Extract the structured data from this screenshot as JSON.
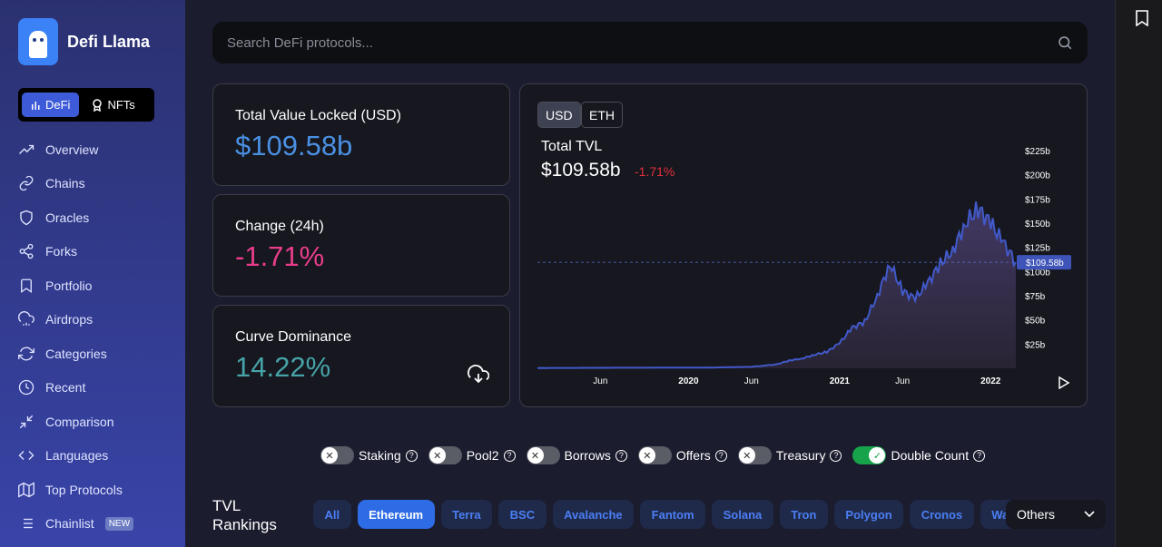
{
  "app": {
    "name": "Defi Llama"
  },
  "mode_switch": [
    {
      "label": "DeFi",
      "active": true
    },
    {
      "label": "NFTs",
      "active": false
    }
  ],
  "nav": [
    {
      "label": "Overview",
      "icon": "trending-up-icon"
    },
    {
      "label": "Chains",
      "icon": "link-icon"
    },
    {
      "label": "Oracles",
      "icon": "shield-icon"
    },
    {
      "label": "Forks",
      "icon": "share-icon"
    },
    {
      "label": "Portfolio",
      "icon": "bookmark-icon"
    },
    {
      "label": "Airdrops",
      "icon": "cloud-rain-icon"
    },
    {
      "label": "Categories",
      "icon": "refresh-icon"
    },
    {
      "label": "Recent",
      "icon": "clock-icon"
    },
    {
      "label": "Comparison",
      "icon": "minimize-icon"
    },
    {
      "label": "Languages",
      "icon": "code-icon"
    },
    {
      "label": "Top Protocols",
      "icon": "map-icon"
    },
    {
      "label": "Chainlist",
      "icon": "list-icon",
      "badge": "NEW"
    }
  ],
  "search": {
    "placeholder": "Search DeFi protocols..."
  },
  "stats": {
    "tvl": {
      "label": "Total Value Locked (USD)",
      "value": "$109.58b",
      "color": "#4a90e2"
    },
    "change": {
      "label": "Change (24h)",
      "value": "-1.71%",
      "color": "#ea3d8c"
    },
    "dominance": {
      "label": "Curve Dominance",
      "value": "14.22%",
      "color": "#46a3a8"
    }
  },
  "chart": {
    "currencies": [
      {
        "label": "USD",
        "active": true
      },
      {
        "label": "ETH",
        "active": false
      }
    ],
    "title": "Total TVL",
    "value": "$109.58b",
    "change": "-1.71%",
    "current_label": "$109.58b"
  },
  "chart_data": {
    "type": "area",
    "title": "Total TVL",
    "y_ticks": [
      "$25b",
      "$50b",
      "$75b",
      "$100b",
      "$125b",
      "$150b",
      "$175b",
      "$200b",
      "$225b"
    ],
    "x_ticks": [
      "Jun",
      "2020",
      "Jun",
      "2021",
      "Jun",
      "2022"
    ],
    "ylim": [
      0,
      235
    ],
    "series": [
      {
        "x": [
          "2019-01",
          "2019-03",
          "2019-06",
          "2019-09",
          "2020-01",
          "2020-03",
          "2020-06",
          "2020-08",
          "2020-09",
          "2020-10",
          "2020-11",
          "2020-12",
          "2021-01",
          "2021-02",
          "2021-03",
          "2021-04",
          "2021-05",
          "2021-06",
          "2021-07",
          "2021-08",
          "2021-09",
          "2021-10",
          "2021-11",
          "2021-12",
          "2022-01",
          "2022-02",
          "2022-03"
        ],
        "values": [
          0.3,
          0.4,
          0.5,
          0.6,
          0.7,
          0.8,
          1.5,
          4,
          8,
          10,
          14,
          17,
          26,
          42,
          48,
          75,
          108,
          80,
          72,
          88,
          108,
          122,
          150,
          165,
          150,
          130,
          109.58
        ]
      }
    ],
    "current_value": 109.58,
    "grid": false
  },
  "toggles": [
    {
      "label": "Staking",
      "on": false
    },
    {
      "label": "Pool2",
      "on": false
    },
    {
      "label": "Borrows",
      "on": false
    },
    {
      "label": "Offers",
      "on": false
    },
    {
      "label": "Treasury",
      "on": false
    },
    {
      "label": "Double Count",
      "on": true
    }
  ],
  "rankings": {
    "title_line1": "TVL",
    "title_line2": "Rankings",
    "chains": [
      {
        "label": "All",
        "active": false
      },
      {
        "label": "Ethereum",
        "active": true
      },
      {
        "label": "Terra",
        "active": false
      },
      {
        "label": "BSC",
        "active": false
      },
      {
        "label": "Avalanche",
        "active": false
      },
      {
        "label": "Fantom",
        "active": false
      },
      {
        "label": "Solana",
        "active": false
      },
      {
        "label": "Tron",
        "active": false
      },
      {
        "label": "Polygon",
        "active": false
      },
      {
        "label": "Cronos",
        "active": false
      },
      {
        "label": "Waves",
        "active": false
      }
    ],
    "others_label": "Others"
  }
}
